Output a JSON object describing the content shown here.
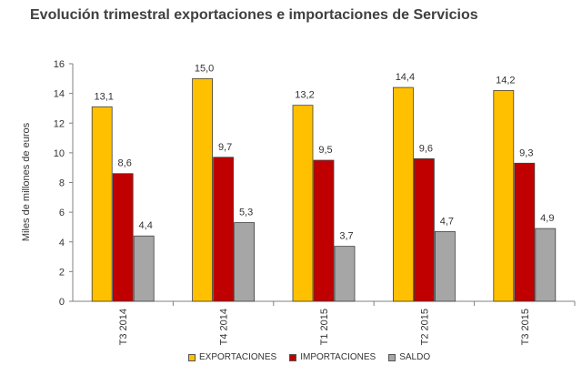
{
  "chart_data": {
    "type": "bar",
    "title": "Evolución trimestral exportaciones e importaciones de Servicios",
    "ylabel": "Miles de millones de euros",
    "xlabel": "",
    "ylim": [
      0,
      16
    ],
    "yticks": [
      0,
      2,
      4,
      6,
      8,
      10,
      12,
      14,
      16
    ],
    "grid": false,
    "legend_position": "bottom",
    "categories": [
      "T3 2014",
      "T4 2014",
      "T1 2015",
      "T2 2015",
      "T3 2015"
    ],
    "series": [
      {
        "name": "EXPORTACIONES",
        "color": "#FFC000",
        "values": [
          13.1,
          15.0,
          13.2,
          14.4,
          14.2
        ],
        "labels": [
          "13,1",
          "15,0",
          "13,2",
          "14,4",
          "14,2"
        ]
      },
      {
        "name": "IMPORTACIONES",
        "color": "#C00000",
        "values": [
          8.6,
          9.7,
          9.5,
          9.6,
          9.3
        ],
        "labels": [
          "8,6",
          "9,7",
          "9,5",
          "9,6",
          "9,3"
        ]
      },
      {
        "name": "SALDO",
        "color": "#A6A6A6",
        "values": [
          4.4,
          5.3,
          3.7,
          4.7,
          4.9
        ],
        "labels": [
          "4,4",
          "5,3",
          "3,7",
          "4,7",
          "4,9"
        ]
      }
    ]
  }
}
